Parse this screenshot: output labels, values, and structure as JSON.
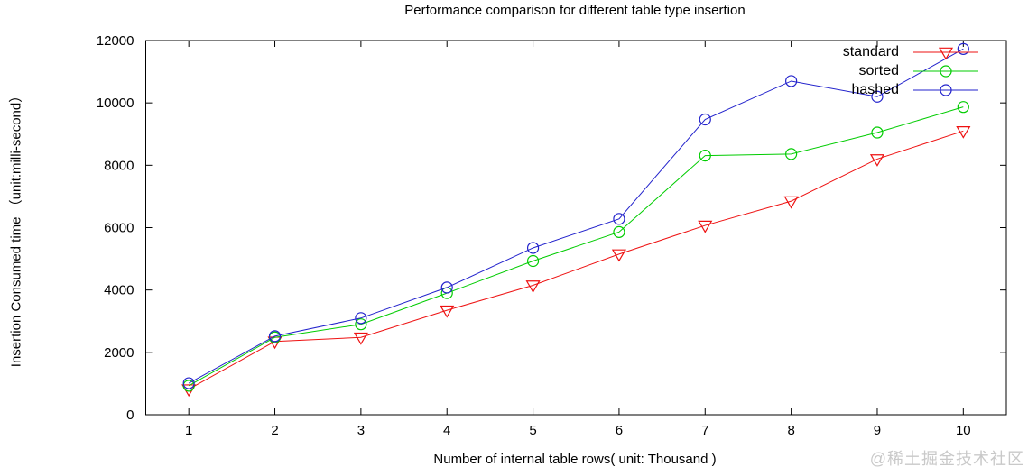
{
  "watermark": {
    "text": "@稀土掘金技术社区"
  },
  "chart_data": {
    "type": "line",
    "title": "Performance comparison for different table type insertion",
    "xlabel": "Number of internal table rows( unit: Thousand )",
    "ylabel": "Insertion Consumed time （unit:milli-second）",
    "x": [
      1,
      2,
      3,
      4,
      5,
      6,
      7,
      8,
      9,
      10
    ],
    "xlim": [
      0.5,
      10.5
    ],
    "ylim": [
      0,
      12000
    ],
    "xticks": [
      1,
      2,
      3,
      4,
      5,
      6,
      7,
      8,
      9,
      10
    ],
    "yticks": [
      0,
      2000,
      4000,
      6000,
      8000,
      10000,
      12000
    ],
    "grid": false,
    "legend_position": "top-right-inside",
    "axis_color": "#000000",
    "series": [
      {
        "name": "standard",
        "color": "#ee1111",
        "marker": "triangle-down",
        "values": [
          820,
          2350,
          2480,
          3350,
          4150,
          5150,
          6070,
          6850,
          8200,
          9100
        ]
      },
      {
        "name": "sorted",
        "color": "#00cc00",
        "marker": "circle",
        "values": [
          930,
          2480,
          2900,
          3900,
          4930,
          5860,
          8310,
          8360,
          9050,
          9870
        ]
      },
      {
        "name": "hashed",
        "color": "#2222cc",
        "marker": "circle",
        "values": [
          1010,
          2520,
          3100,
          4080,
          5350,
          6280,
          9470,
          10700,
          10200,
          11730
        ]
      }
    ]
  }
}
